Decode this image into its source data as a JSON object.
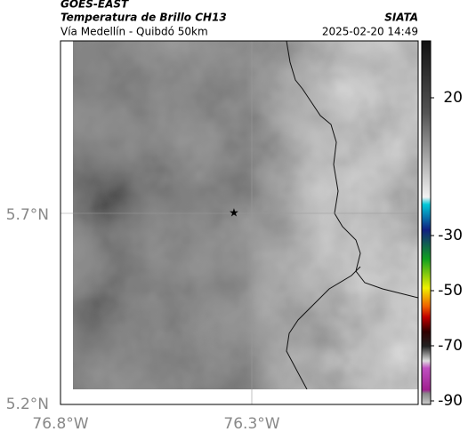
{
  "header": {
    "source": "GOES-EAST",
    "title": "Temperatura de Brillo CH13",
    "subtitle": "Vía Medellín - Quibdó 50km",
    "org": "SIATA",
    "datetime": "2025-02-20 14:49"
  },
  "axes": {
    "y_labels": [
      "5.7°N",
      "5.2°N"
    ],
    "x_labels": [
      "76.8°W",
      "76.3°W"
    ]
  },
  "colorbar": {
    "ticks": [
      20,
      -30,
      -50,
      -70,
      -90
    ]
  }
}
